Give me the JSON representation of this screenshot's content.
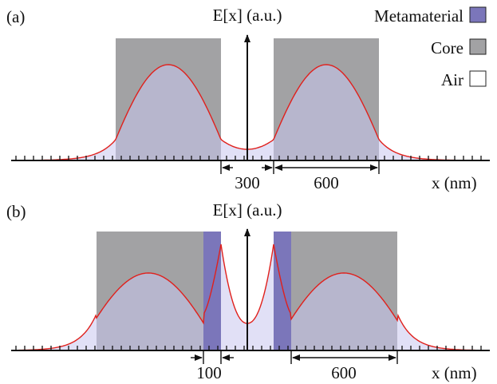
{
  "colors": {
    "metamaterial": "#7b76ba",
    "core": "#a2a2a4",
    "air_fill": "#d2d0ee",
    "field_curve": "#e0201c",
    "axis": "#111111"
  },
  "legend": [
    {
      "label": "Metamaterial",
      "swatch": "metamaterial"
    },
    {
      "label": "Core",
      "swatch": "core"
    },
    {
      "label": "Air",
      "swatch": "air"
    }
  ],
  "panels": [
    {
      "tag": "(a)",
      "ylabel": "E[x] (a.u.)",
      "xlabel": "x (nm)",
      "dimensions": [
        "300",
        "600"
      ]
    },
    {
      "tag": "(b)",
      "ylabel": "E[x] (a.u.)",
      "xlabel": "x (nm)",
      "dimensions": [
        "100",
        "600"
      ]
    }
  ]
}
